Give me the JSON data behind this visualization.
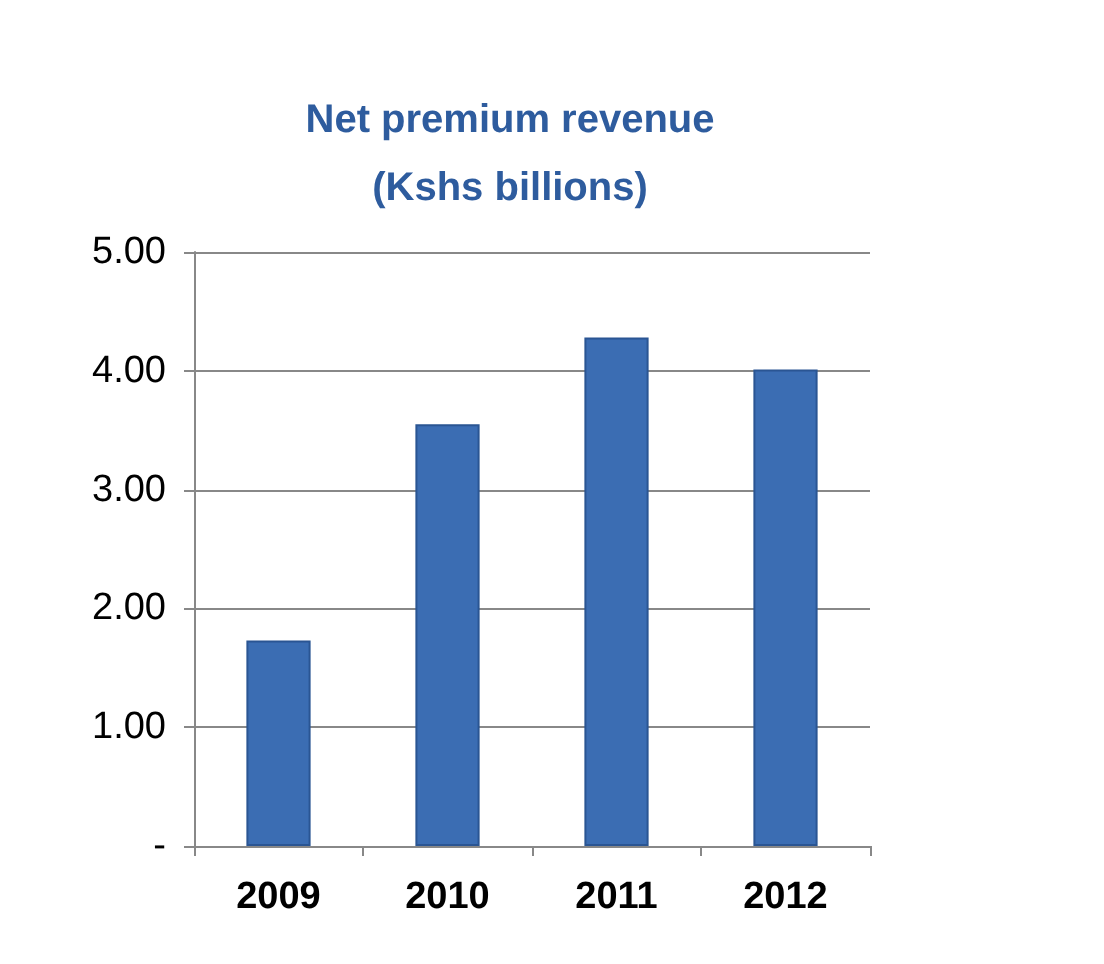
{
  "chart_data": {
    "type": "bar",
    "title": "Net premium revenue\n(Kshs billions)",
    "categories": [
      "2009",
      "2010",
      "2011",
      "2012"
    ],
    "values": [
      1.73,
      3.55,
      4.28,
      4.01
    ],
    "color": "#3b6db3",
    "ylim": [
      0,
      5
    ],
    "yticks": [
      {
        "value": 0,
        "label": "-"
      },
      {
        "value": 1,
        "label": "1.00"
      },
      {
        "value": 2,
        "label": "2.00"
      },
      {
        "value": 3,
        "label": "3.00"
      },
      {
        "value": 4,
        "label": "4.00"
      },
      {
        "value": 5,
        "label": "5.00"
      }
    ],
    "grid": "y"
  }
}
